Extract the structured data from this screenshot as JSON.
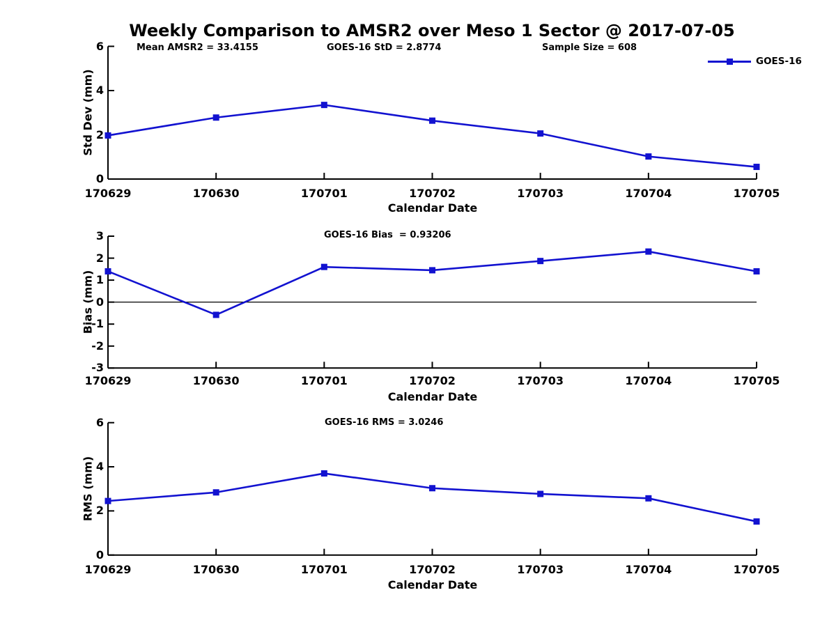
{
  "page_title": "Weekly Comparison to AMSR2 over Meso 1 Sector @ 2017-07-05",
  "colors": {
    "series": "#1212d0",
    "axis": "#000000",
    "text": "#000000",
    "background": "#ffffff"
  },
  "legend": {
    "label": "GOES-16",
    "position": "top-right",
    "marker": "filled-square"
  },
  "chart_data": [
    {
      "type": "line",
      "annotations": [
        "Mean AMSR2 = 33.4155",
        "GOES-16 StD = 2.8774",
        "Sample Size = 608"
      ],
      "categories": [
        "170629",
        "170630",
        "170701",
        "170702",
        "170703",
        "170704",
        "170705"
      ],
      "series": [
        {
          "name": "GOES-16",
          "values": [
            1.97,
            2.78,
            3.35,
            2.64,
            2.06,
            1.02,
            0.55
          ]
        }
      ],
      "xlabel": "Calendar Date",
      "ylabel": "Std Dev (mm)",
      "ylim": [
        0,
        6
      ],
      "yticks": [
        0,
        2,
        4,
        6
      ],
      "zero_line": false,
      "grid": false,
      "legend_visible": true
    },
    {
      "type": "line",
      "annotations": [
        "GOES-16 Bias  = 0.93206"
      ],
      "categories": [
        "170629",
        "170630",
        "170701",
        "170702",
        "170703",
        "170704",
        "170705"
      ],
      "series": [
        {
          "name": "GOES-16",
          "values": [
            1.4,
            -0.58,
            1.6,
            1.45,
            1.87,
            2.3,
            1.4
          ]
        }
      ],
      "xlabel": "Calendar Date",
      "ylabel": "Bias (mm)",
      "ylim": [
        -3,
        3
      ],
      "yticks": [
        -3,
        -2,
        -1,
        0,
        1,
        2,
        3
      ],
      "zero_line": true,
      "grid": false,
      "legend_visible": false
    },
    {
      "type": "line",
      "annotations": [
        "GOES-16 RMS = 3.0246"
      ],
      "categories": [
        "170629",
        "170630",
        "170701",
        "170702",
        "170703",
        "170704",
        "170705"
      ],
      "series": [
        {
          "name": "GOES-16",
          "values": [
            2.45,
            2.84,
            3.7,
            3.03,
            2.77,
            2.57,
            1.52
          ]
        }
      ],
      "xlabel": "Calendar Date",
      "ylabel": "RMS (mm)",
      "ylim": [
        0,
        6
      ],
      "yticks": [
        0,
        2,
        4,
        6
      ],
      "zero_line": false,
      "grid": false,
      "legend_visible": false
    }
  ]
}
